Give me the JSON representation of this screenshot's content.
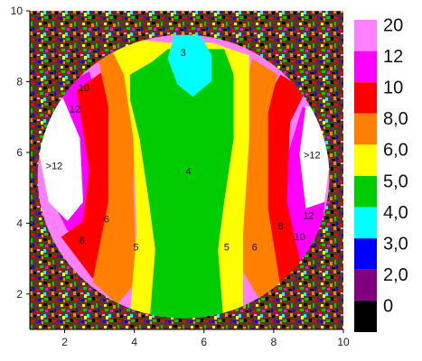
{
  "chart_data": {
    "type": "heatmap",
    "title": "",
    "xlabel": "",
    "ylabel": "",
    "xlim": [
      1,
      10
    ],
    "ylim": [
      1,
      10
    ],
    "x_ticks": [
      "2",
      "4",
      "6",
      "8",
      "10"
    ],
    "y_ticks": [
      "2",
      "4",
      "6",
      "8",
      "10"
    ],
    "colorbar": {
      "levels": [
        {
          "label": "20",
          "color": "#ff80ff"
        },
        {
          "label": "12",
          "color": "#ff00ff"
        },
        {
          "label": "10",
          "color": "#ff0000"
        },
        {
          "label": "8,0",
          "color": "#ff8000"
        },
        {
          "label": "6,0",
          "color": "#ffff00"
        },
        {
          "label": "5,0",
          "color": "#00cc00"
        },
        {
          "label": "4,0",
          "color": "#00ffff"
        },
        {
          "label": "3,0",
          "color": "#0000ff"
        },
        {
          "label": "2,0",
          "color": "#800080"
        },
        {
          "label": "0",
          "color": "#000000"
        }
      ]
    },
    "regions": [
      {
        "label": "3",
        "x": 5.4,
        "y": 8.8
      },
      {
        "label": "4",
        "x": 5.55,
        "y": 5.45
      },
      {
        "label": "5",
        "x": 4.05,
        "y": 3.3
      },
      {
        "label": "5",
        "x": 6.65,
        "y": 3.3
      },
      {
        "label": "6",
        "x": 3.2,
        "y": 4.1
      },
      {
        "label": "6",
        "x": 7.45,
        "y": 3.3
      },
      {
        "label": "8",
        "x": 2.5,
        "y": 3.5
      },
      {
        "label": "8",
        "x": 8.2,
        "y": 3.9
      },
      {
        "label": "10",
        "x": 2.55,
        "y": 7.8
      },
      {
        "label": "10",
        "x": 8.75,
        "y": 3.6
      },
      {
        "label": "12",
        "x": 2.3,
        "y": 7.2
      },
      {
        "label": "12",
        "x": 9.0,
        "y": 4.2
      },
      {
        "label": ">12",
        "x": 1.7,
        "y": 5.6
      },
      {
        "label": ">12",
        "x": 9.1,
        "y": 5.9
      }
    ],
    "grid": false,
    "legend": "right"
  }
}
